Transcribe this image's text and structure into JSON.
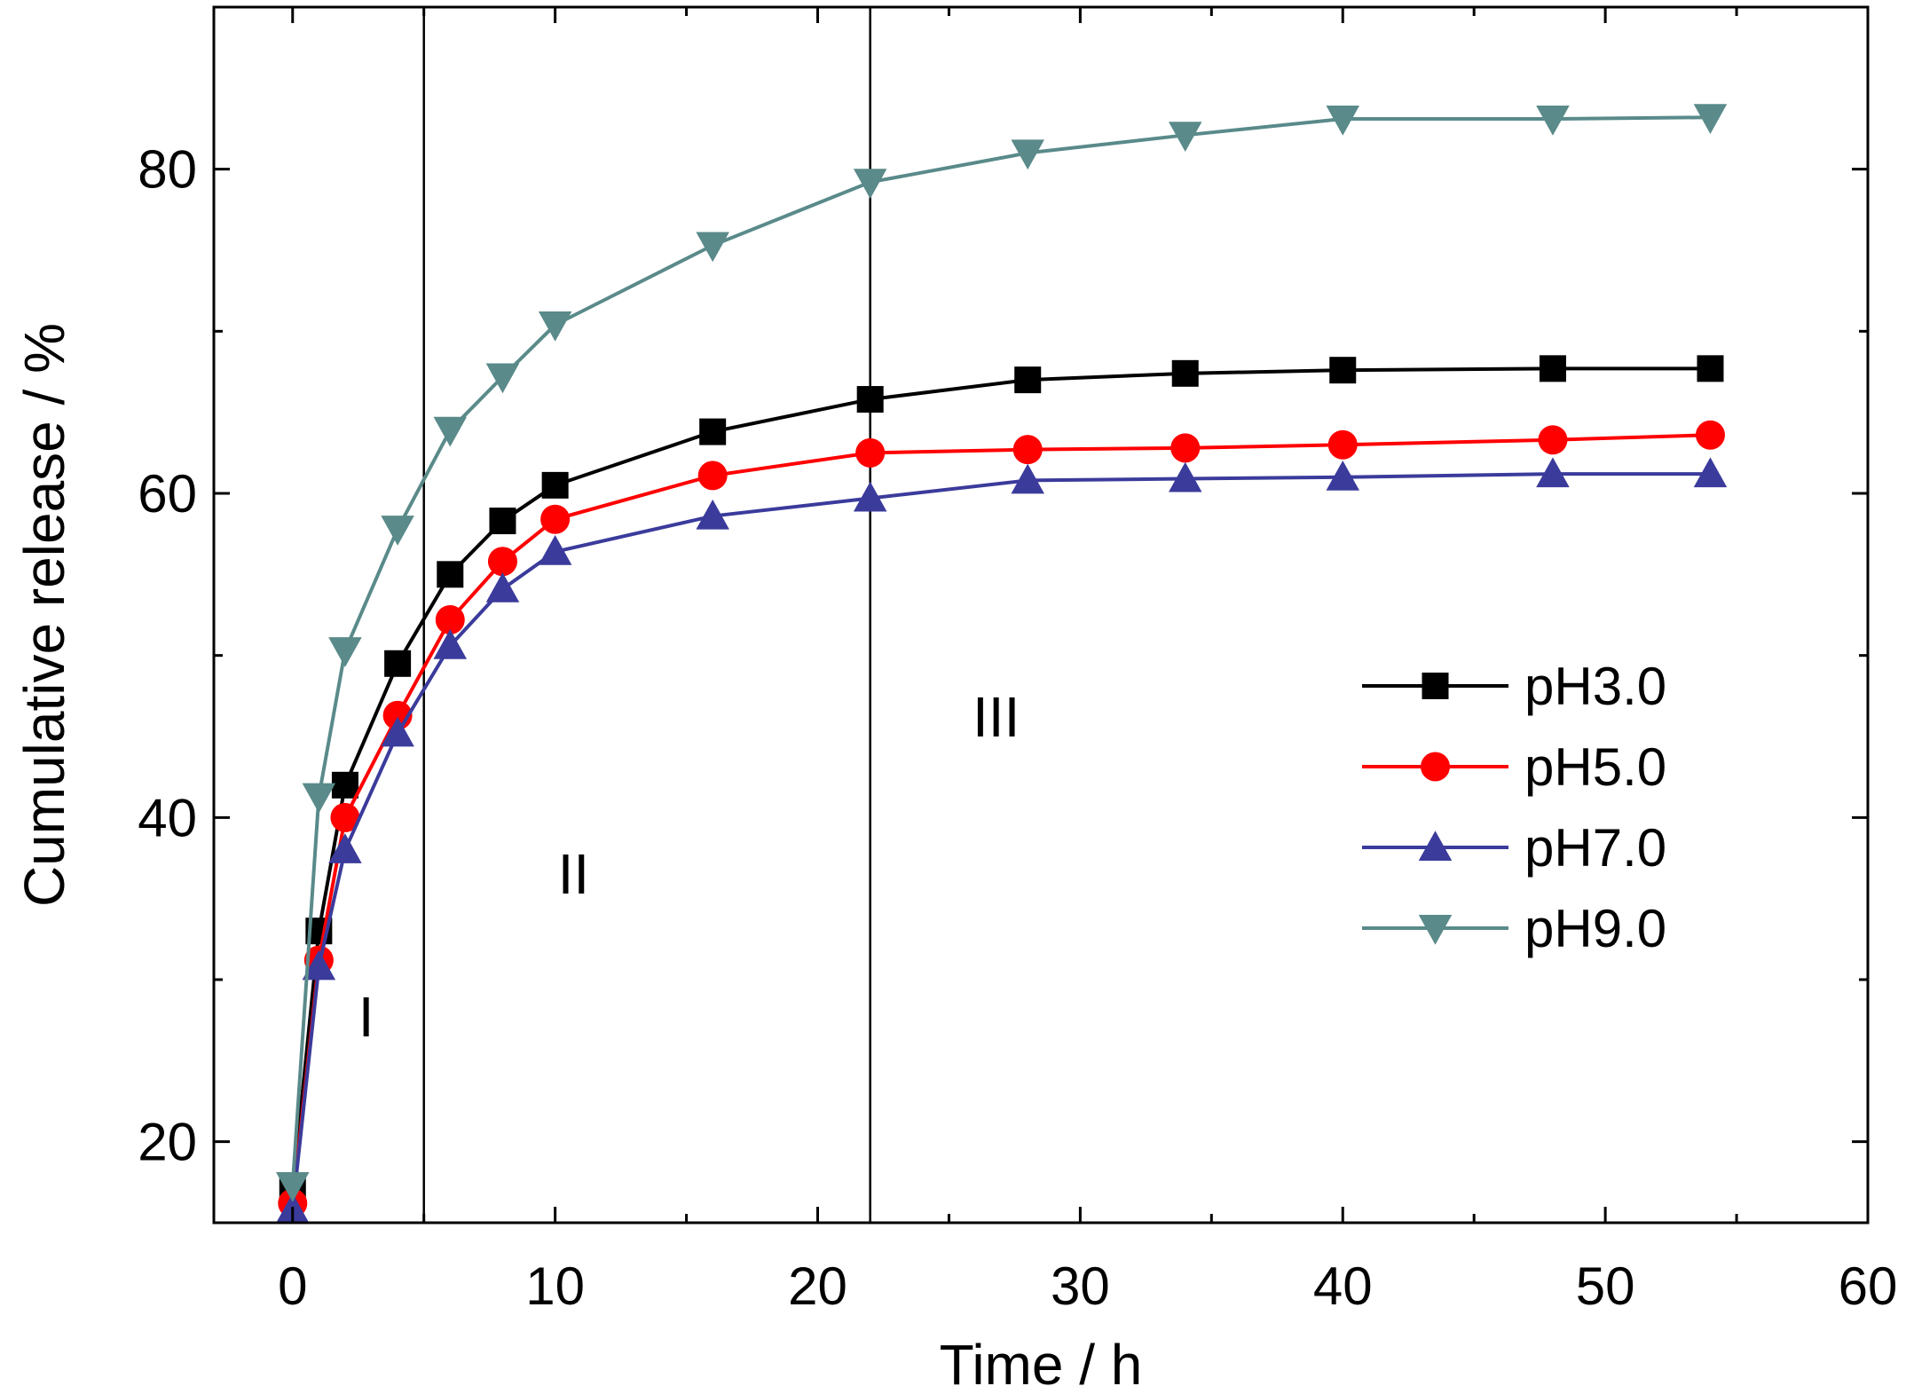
{
  "chart_data": {
    "type": "line",
    "title": "",
    "xlabel": "Time / h",
    "ylabel": "Cumulative release / %",
    "xlim": [
      -3,
      60
    ],
    "ylim": [
      15,
      90
    ],
    "xticks": [
      0,
      10,
      20,
      30,
      40,
      50,
      60
    ],
    "xticks_minor": [
      5,
      15,
      25,
      35,
      45,
      55
    ],
    "yticks": [
      20,
      40,
      60,
      80
    ],
    "yticks_minor": [
      30,
      50,
      70,
      90
    ],
    "grid": false,
    "legend_position": "center-right",
    "x": [
      0,
      1,
      2,
      4,
      6,
      8,
      10,
      16,
      22,
      28,
      34,
      40,
      48,
      54
    ],
    "series": [
      {
        "name": "pH3.0",
        "color": "#000000",
        "marker": "square",
        "values": [
          17.0,
          33.0,
          42.0,
          49.5,
          55.0,
          58.3,
          60.5,
          63.8,
          65.8,
          67.0,
          67.4,
          67.6,
          67.7,
          67.7
        ]
      },
      {
        "name": "pH5.0",
        "color": "#ff0000",
        "marker": "circle",
        "values": [
          16.2,
          31.2,
          40.0,
          46.3,
          52.2,
          55.8,
          58.4,
          61.1,
          62.5,
          62.7,
          62.8,
          63.0,
          63.3,
          63.6
        ]
      },
      {
        "name": "pH7.0",
        "color": "#3b3b9c",
        "marker": "triangle-up",
        "values": [
          15.8,
          30.8,
          38.0,
          45.2,
          50.6,
          54.1,
          56.4,
          58.6,
          59.7,
          60.8,
          60.9,
          61.0,
          61.2,
          61.2
        ]
      },
      {
        "name": "pH9.0",
        "color": "#5a8a8a",
        "marker": "triangle-down",
        "values": [
          17.3,
          41.3,
          50.3,
          57.8,
          63.9,
          67.2,
          70.4,
          75.3,
          79.2,
          81.0,
          82.1,
          83.1,
          83.1,
          83.2
        ]
      }
    ],
    "vlines": [
      5,
      22
    ],
    "regions": [
      {
        "label": "I",
        "x": 2.8,
        "y": 26.5
      },
      {
        "label": "II",
        "x": 10.7,
        "y": 35.3
      },
      {
        "label": "III",
        "x": 26.8,
        "y": 45.0
      }
    ]
  }
}
